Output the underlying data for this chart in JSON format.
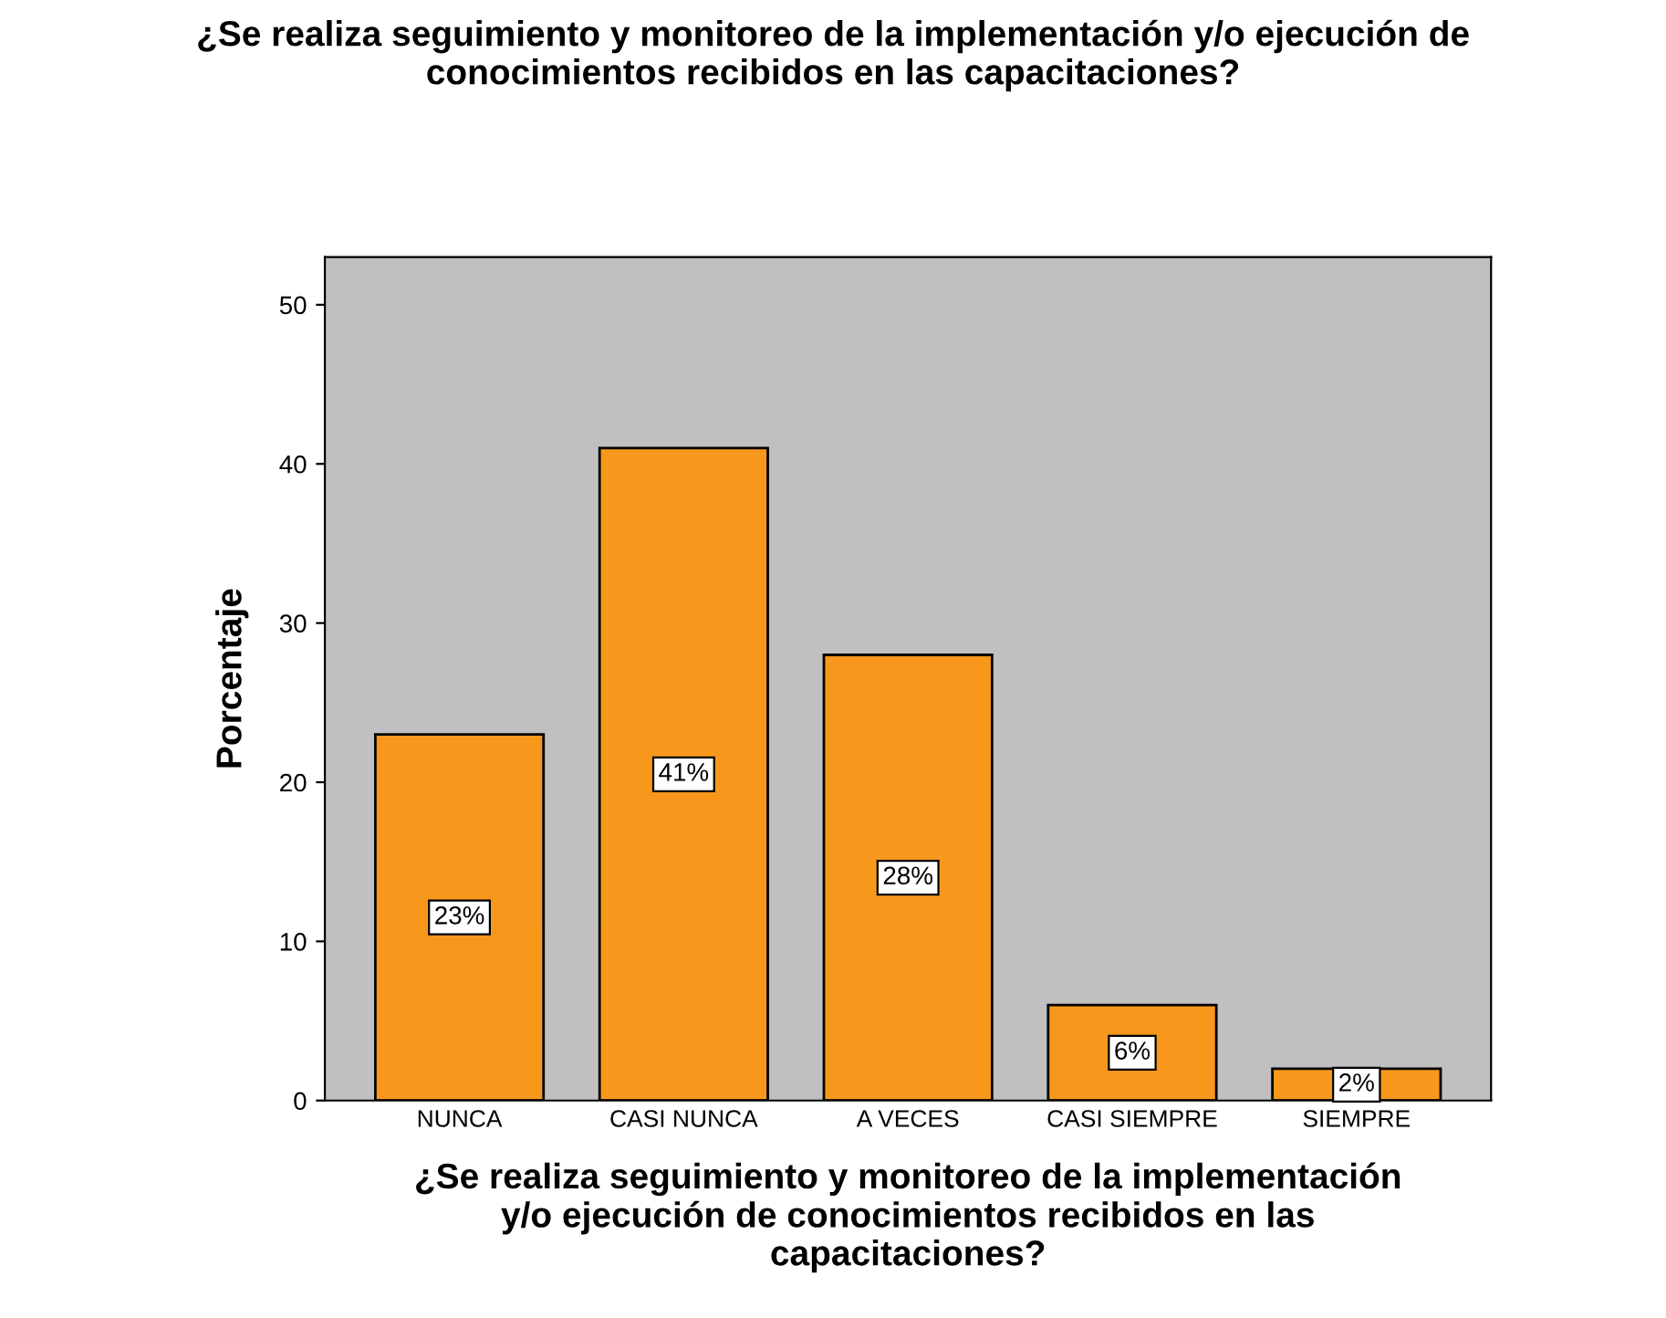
{
  "chart_data": {
    "type": "bar",
    "title": "¿Se realiza seguimiento y monitoreo de la implementación y/o ejecución de\nconocimientos recibidos en las capacitaciones?",
    "xlabel": "¿Se realiza seguimiento y monitoreo de la implementación\ny/o ejecución de conocimientos recibidos en las\ncapacitaciones?",
    "ylabel": "Porcentaje",
    "categories": [
      "NUNCA",
      "CASI NUNCA",
      "A VECES",
      "CASI SIEMPRE",
      "SIEMPRE"
    ],
    "values": [
      23,
      41,
      28,
      6,
      2
    ],
    "value_labels": [
      "23%",
      "41%",
      "28%",
      "6%",
      "2%"
    ],
    "color": "#f7981d",
    "ylim": [
      0,
      53
    ],
    "yticks": [
      0,
      10,
      20,
      30,
      40,
      50
    ],
    "grid": false,
    "legend": false
  }
}
